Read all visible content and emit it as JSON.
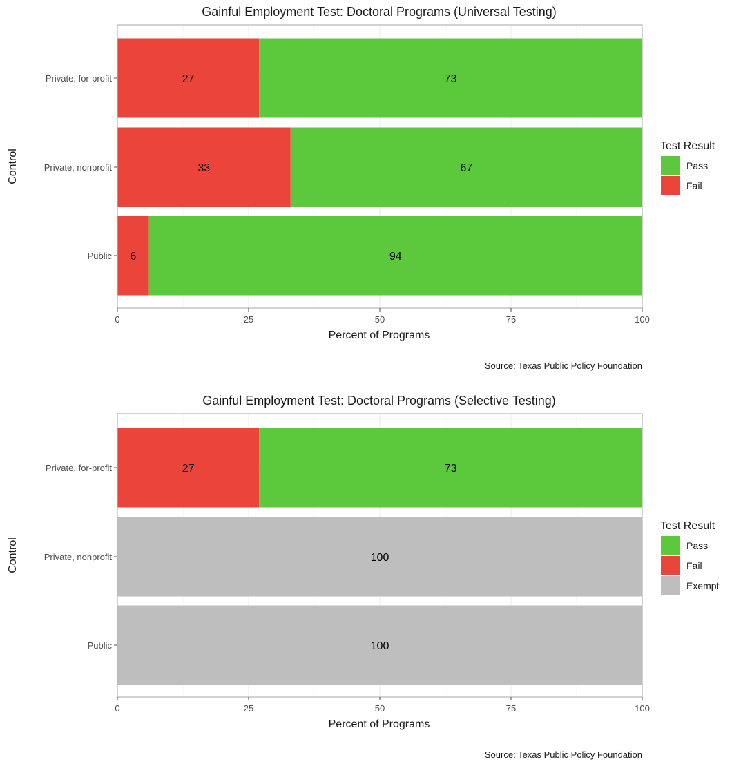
{
  "chart_data": [
    {
      "type": "bar",
      "orientation": "horizontal",
      "stacked": true,
      "title": "Gainful Employment Test: Doctoral Programs (Universal Testing)",
      "xlabel": "Percent of Programs",
      "ylabel": "Control",
      "caption": "Source: Texas Public Policy Foundation",
      "xlim": [
        0,
        100
      ],
      "xticks": [
        "0",
        "25",
        "50",
        "75",
        "100"
      ],
      "categories": [
        "Private, for-profit",
        "Private, nonprofit",
        "Public"
      ],
      "legend": {
        "title": "Test Result",
        "position": "right",
        "entries": [
          "Pass",
          "Fail"
        ]
      },
      "grid": true,
      "series": [
        {
          "name": "Fail",
          "color": "#eb443b",
          "values": [
            27,
            33,
            6
          ]
        },
        {
          "name": "Pass",
          "color": "#5cc83c",
          "values": [
            73,
            67,
            94
          ]
        }
      ]
    },
    {
      "type": "bar",
      "orientation": "horizontal",
      "stacked": true,
      "title": "Gainful Employment Test: Doctoral Programs (Selective Testing)",
      "xlabel": "Percent of Programs",
      "ylabel": "Control",
      "caption": "Source: Texas Public Policy Foundation",
      "xlim": [
        0,
        100
      ],
      "xticks": [
        "0",
        "25",
        "50",
        "75",
        "100"
      ],
      "categories": [
        "Private, for-profit",
        "Private, nonprofit",
        "Public"
      ],
      "legend": {
        "title": "Test Result",
        "position": "right",
        "entries": [
          "Pass",
          "Fail",
          "Exempt"
        ]
      },
      "grid": true,
      "series": [
        {
          "name": "Fail",
          "color": "#eb443b",
          "values": [
            27,
            0,
            0
          ]
        },
        {
          "name": "Pass",
          "color": "#5cc83c",
          "values": [
            73,
            0,
            0
          ]
        },
        {
          "name": "Exempt",
          "color": "#bebebe",
          "values": [
            0,
            100,
            100
          ]
        }
      ]
    }
  ]
}
